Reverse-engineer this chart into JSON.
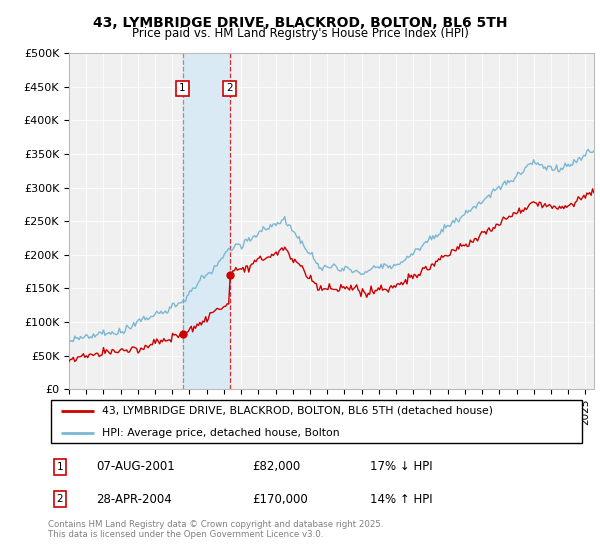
{
  "title": "43, LYMBRIDGE DRIVE, BLACKROD, BOLTON, BL6 5TH",
  "subtitle": "Price paid vs. HM Land Registry's House Price Index (HPI)",
  "legend_line1": "43, LYMBRIDGE DRIVE, BLACKROD, BOLTON, BL6 5TH (detached house)",
  "legend_line2": "HPI: Average price, detached house, Bolton",
  "transaction1_date": "07-AUG-2001",
  "transaction1_price": "£82,000",
  "transaction1_hpi": "17% ↓ HPI",
  "transaction2_date": "28-APR-2004",
  "transaction2_price": "£170,000",
  "transaction2_hpi": "14% ↑ HPI",
  "footnote": "Contains HM Land Registry data © Crown copyright and database right 2025.\nThis data is licensed under the Open Government Licence v3.0.",
  "red_color": "#cc0000",
  "blue_color": "#7ab8d4",
  "highlight_color": "#daeaf5",
  "vline1_date": 2001.6,
  "vline2_date": 2004.33,
  "ylim": [
    0,
    500000
  ],
  "yticks": [
    0,
    50000,
    100000,
    150000,
    200000,
    250000,
    300000,
    350000,
    400000,
    450000,
    500000
  ],
  "xmin": 1995.0,
  "xmax": 2025.5,
  "bg_color": "#f0f0f0"
}
